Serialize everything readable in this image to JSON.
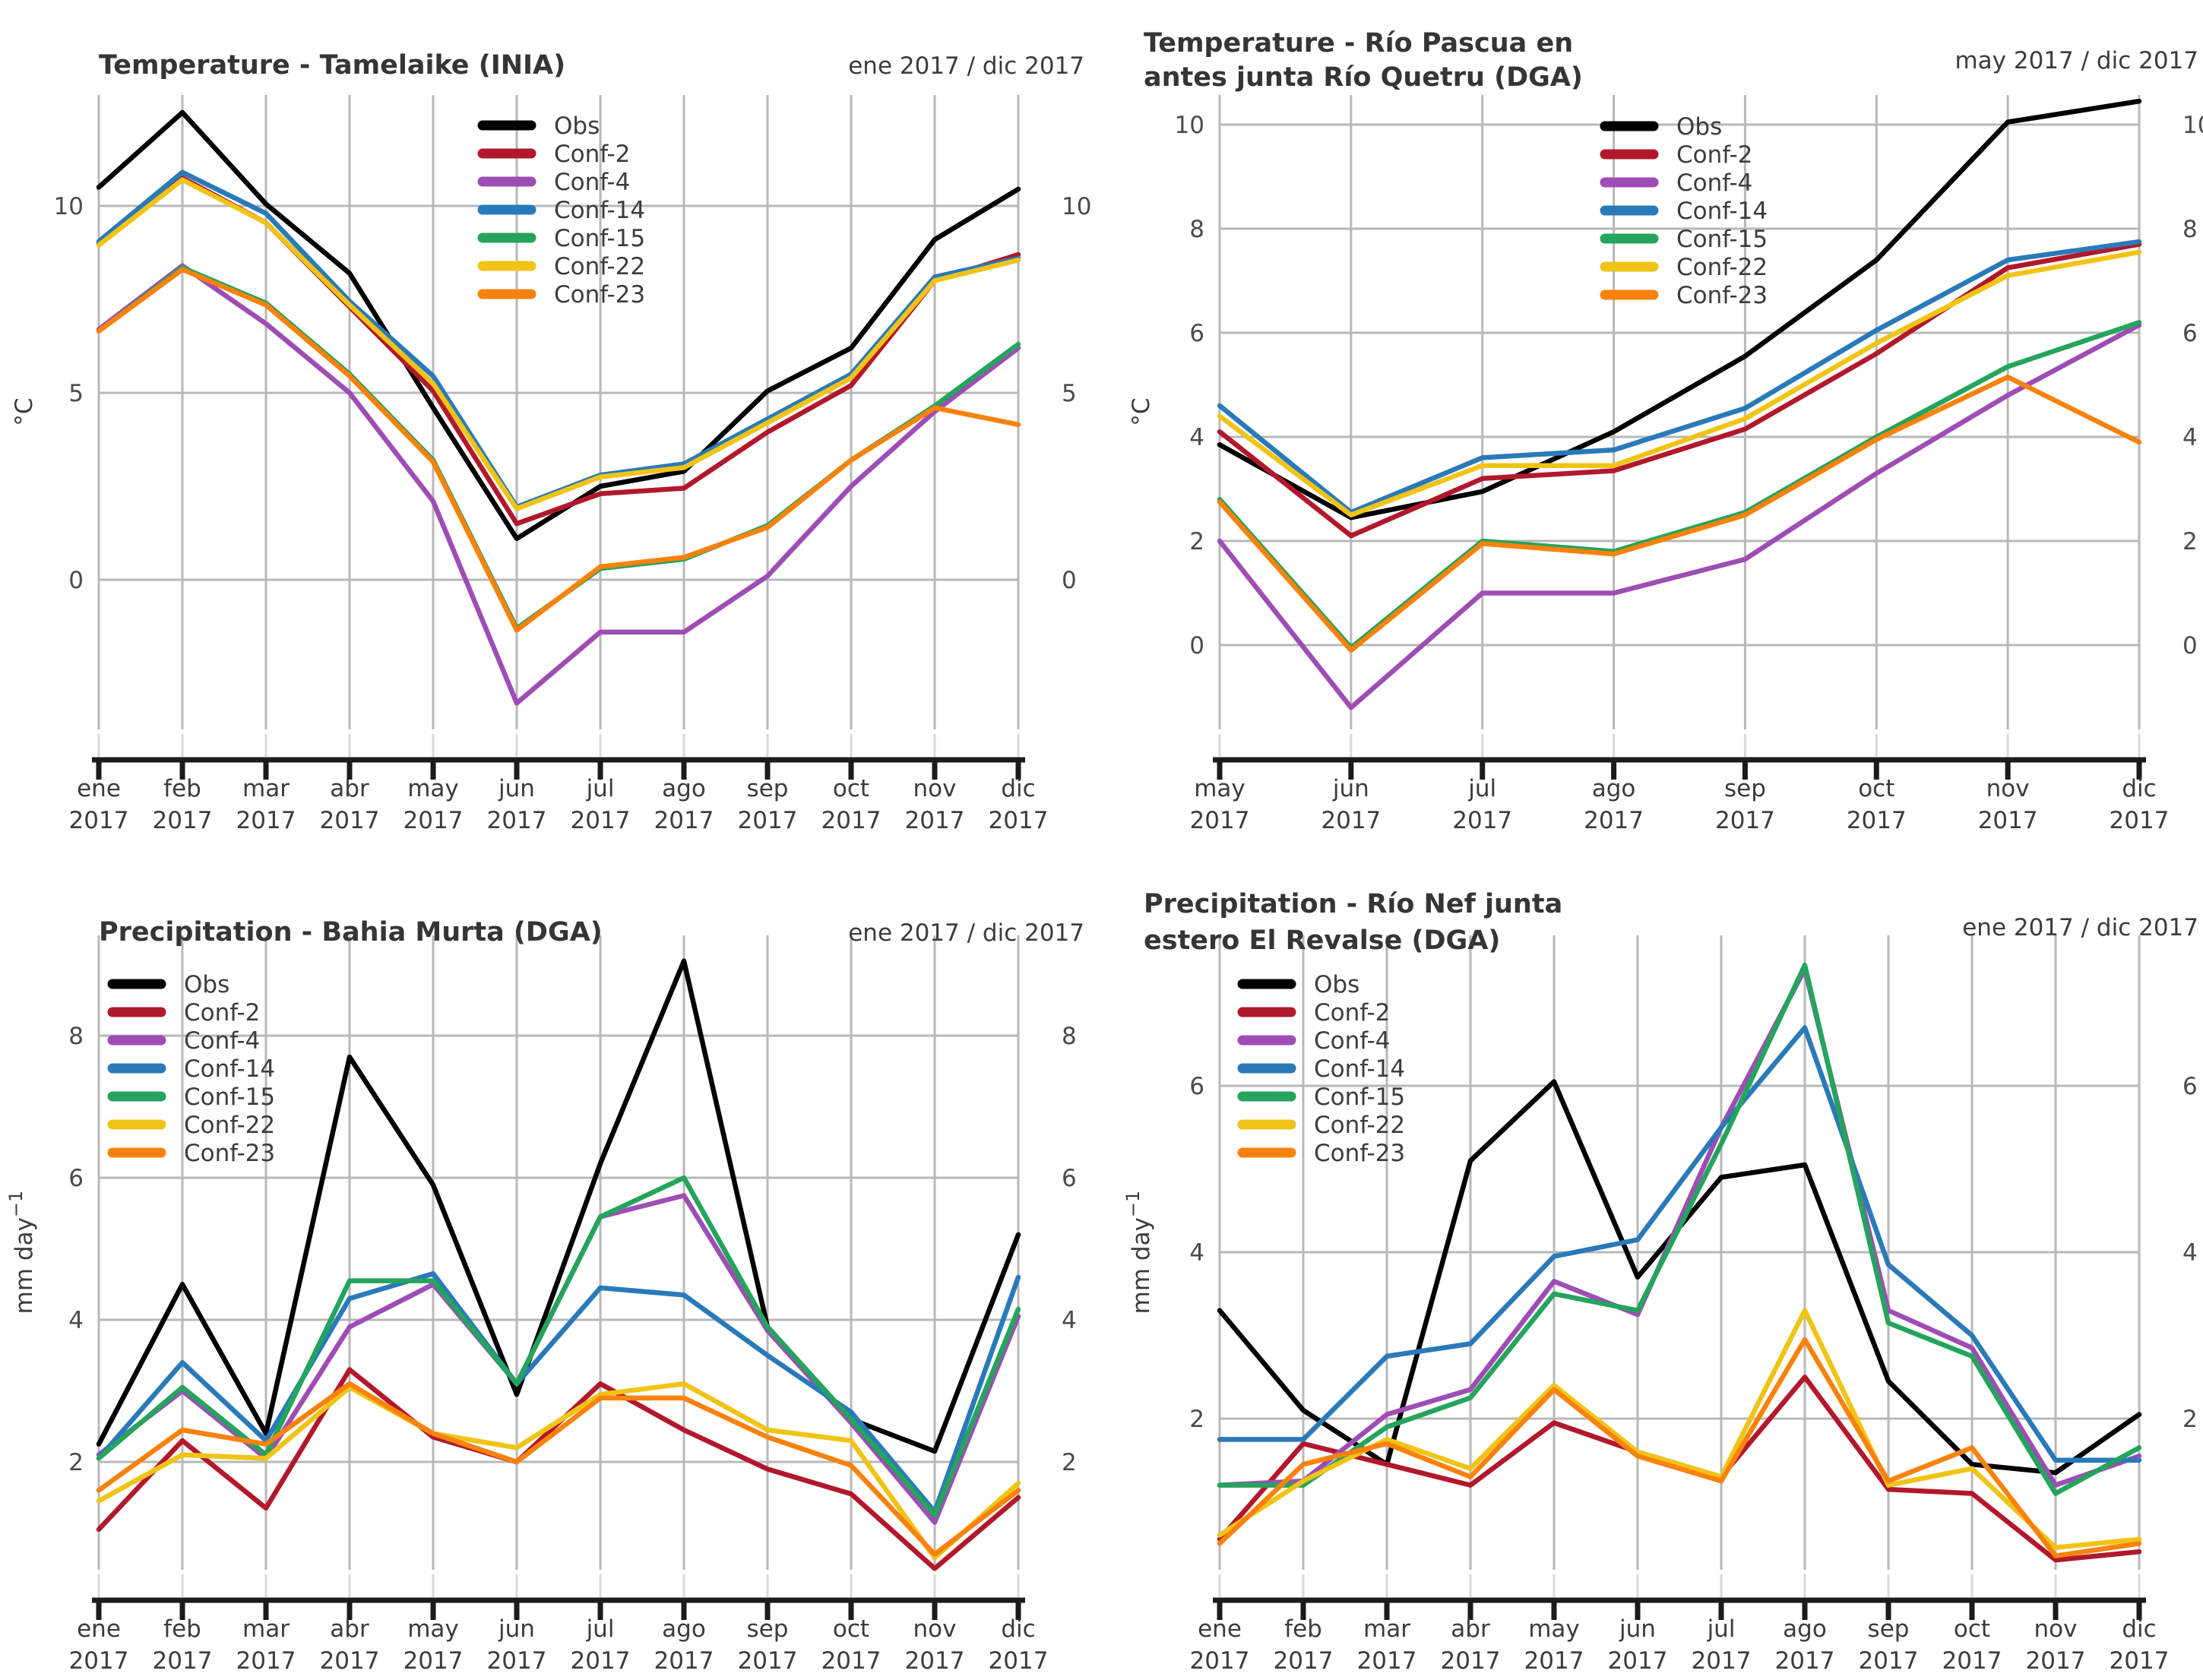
{
  "figure": {
    "background": "#ffffff",
    "grid_color": "#b8b8b8",
    "stub_color": "#d9d9d9",
    "axis_color": "#1b1b1b",
    "title_color": "#353535",
    "tick_label_color": "#4b4b4b"
  },
  "chart_data": [
    {
      "type": "line",
      "title_lines": [
        "Temperature - Tamelaike (INIA)"
      ],
      "range_label": "ene 2017 / dic 2017",
      "ylabel": {
        "main": "°C",
        "sup": ""
      },
      "year": "2017",
      "categories": [
        "ene",
        "feb",
        "mar",
        "abr",
        "may",
        "jun",
        "jul",
        "ago",
        "sep",
        "oct",
        "nov",
        "dic"
      ],
      "yticks": [
        0,
        5,
        10
      ],
      "ylim": [
        -4.0,
        12.95
      ],
      "grid": true,
      "legend_position": "inside-top-center-right",
      "series": [
        {
          "name": "Obs",
          "color": "#000000",
          "values": [
            10.5,
            12.5,
            10.05,
            8.2,
            4.6,
            1.1,
            2.5,
            2.9,
            5.05,
            6.2,
            9.1,
            10.45
          ]
        },
        {
          "name": "Conf-2",
          "color": "#b2182b",
          "values": [
            9.0,
            10.75,
            9.55,
            7.3,
            5.05,
            1.5,
            2.3,
            2.45,
            3.95,
            5.2,
            8.0,
            8.7
          ]
        },
        {
          "name": "Conf-4",
          "color": "#9e4db5",
          "values": [
            6.7,
            8.4,
            6.85,
            5.0,
            2.1,
            -3.3,
            -1.4,
            -1.4,
            0.1,
            2.5,
            4.5,
            6.2
          ]
        },
        {
          "name": "Conf-14",
          "color": "#2a7ab9",
          "values": [
            9.05,
            10.9,
            9.8,
            7.45,
            5.45,
            1.95,
            2.8,
            3.1,
            4.3,
            5.5,
            8.1,
            8.6
          ]
        },
        {
          "name": "Conf-15",
          "color": "#24a45c",
          "values": [
            6.65,
            8.35,
            7.4,
            5.5,
            3.2,
            -1.3,
            0.3,
            0.55,
            1.45,
            3.2,
            4.65,
            6.3
          ]
        },
        {
          "name": "Conf-22",
          "color": "#f0c417",
          "values": [
            8.95,
            10.7,
            9.55,
            7.35,
            5.25,
            1.9,
            2.75,
            3.0,
            4.2,
            5.4,
            8.0,
            8.55
          ]
        },
        {
          "name": "Conf-23",
          "color": "#f9820d",
          "values": [
            6.65,
            8.3,
            7.35,
            5.45,
            3.15,
            -1.35,
            0.35,
            0.6,
            1.4,
            3.2,
            4.6,
            4.15
          ]
        }
      ]
    },
    {
      "type": "line",
      "title_lines": [
        "Temperature - Río Pascua en",
        "antes junta Río Quetru (DGA)"
      ],
      "range_label": "may 2017 / dic 2017",
      "ylabel": {
        "main": "°C",
        "sup": ""
      },
      "year": "2017",
      "categories": [
        "may",
        "jun",
        "jul",
        "ago",
        "sep",
        "oct",
        "nov",
        "dic"
      ],
      "yticks": [
        0,
        2,
        4,
        6,
        8,
        10
      ],
      "ylim": [
        -1.6,
        10.55
      ],
      "grid": true,
      "legend_position": "inside-top-center-right",
      "series": [
        {
          "name": "Obs",
          "color": "#000000",
          "values": [
            3.85,
            2.45,
            2.95,
            4.1,
            5.55,
            7.4,
            10.05,
            10.45
          ]
        },
        {
          "name": "Conf-2",
          "color": "#b2182b",
          "values": [
            4.1,
            2.1,
            3.2,
            3.35,
            4.15,
            5.6,
            7.25,
            7.7
          ]
        },
        {
          "name": "Conf-4",
          "color": "#9e4db5",
          "values": [
            2.0,
            -1.2,
            1.0,
            1.0,
            1.65,
            3.3,
            4.8,
            6.15
          ]
        },
        {
          "name": "Conf-14",
          "color": "#2a7ab9",
          "values": [
            4.6,
            2.55,
            3.6,
            3.75,
            4.55,
            6.05,
            7.4,
            7.75
          ]
        },
        {
          "name": "Conf-15",
          "color": "#24a45c",
          "values": [
            2.8,
            -0.05,
            2.0,
            1.8,
            2.55,
            4.0,
            5.35,
            6.2
          ]
        },
        {
          "name": "Conf-22",
          "color": "#f0c417",
          "values": [
            4.4,
            2.5,
            3.45,
            3.45,
            4.35,
            5.8,
            7.1,
            7.55
          ]
        },
        {
          "name": "Conf-23",
          "color": "#f9820d",
          "values": [
            2.75,
            -0.1,
            1.95,
            1.75,
            2.5,
            3.95,
            5.15,
            3.9
          ]
        }
      ]
    },
    {
      "type": "line",
      "title_lines": [
        "Precipitation - Bahia Murta (DGA)"
      ],
      "range_label": "ene 2017 / dic 2017",
      "ylabel": {
        "main": "mm day",
        "sup": "−1"
      },
      "year": "2017",
      "categories": [
        "ene",
        "feb",
        "mar",
        "abr",
        "may",
        "jun",
        "jul",
        "ago",
        "sep",
        "oct",
        "nov",
        "dic"
      ],
      "yticks": [
        2,
        4,
        6,
        8
      ],
      "ylim": [
        0.45,
        9.4
      ],
      "grid": true,
      "legend_position": "inside-top-left",
      "series": [
        {
          "name": "Obs",
          "color": "#000000",
          "values": [
            2.25,
            4.5,
            2.4,
            7.7,
            5.9,
            2.95,
            6.2,
            9.05,
            3.9,
            2.6,
            2.15,
            5.2
          ]
        },
        {
          "name": "Conf-2",
          "color": "#b2182b",
          "values": [
            1.05,
            2.3,
            1.35,
            3.3,
            2.35,
            2.0,
            3.1,
            2.45,
            1.9,
            1.55,
            0.5,
            1.5
          ]
        },
        {
          "name": "Conf-4",
          "color": "#9e4db5",
          "values": [
            2.1,
            3.0,
            2.05,
            3.9,
            4.5,
            3.1,
            5.45,
            5.75,
            3.85,
            2.55,
            1.15,
            4.05
          ]
        },
        {
          "name": "Conf-14",
          "color": "#2a7ab9",
          "values": [
            2.05,
            3.4,
            2.3,
            4.3,
            4.65,
            3.1,
            4.45,
            4.35,
            3.5,
            2.7,
            1.3,
            4.6
          ]
        },
        {
          "name": "Conf-15",
          "color": "#24a45c",
          "values": [
            2.05,
            3.05,
            2.1,
            4.55,
            4.55,
            3.1,
            5.45,
            6.0,
            3.9,
            2.6,
            1.25,
            4.15
          ]
        },
        {
          "name": "Conf-22",
          "color": "#f0c417",
          "values": [
            1.45,
            2.1,
            2.05,
            3.05,
            2.4,
            2.2,
            2.95,
            3.1,
            2.45,
            2.3,
            0.65,
            1.7
          ]
        },
        {
          "name": "Conf-23",
          "color": "#f9820d",
          "values": [
            1.6,
            2.45,
            2.25,
            3.1,
            2.4,
            2.0,
            2.9,
            2.9,
            2.35,
            1.95,
            0.7,
            1.6
          ]
        }
      ]
    },
    {
      "type": "line",
      "title_lines": [
        "Precipitation - Río Nef junta",
        "estero El Revalse (DGA)"
      ],
      "range_label": "ene 2017 / dic 2017",
      "ylabel": {
        "main": "mm day",
        "sup": "−1"
      },
      "year": "2017",
      "categories": [
        "ene",
        "feb",
        "mar",
        "abr",
        "may",
        "jun",
        "jul",
        "ago",
        "sep",
        "oct",
        "nov",
        "dic"
      ],
      "yticks": [
        2,
        4,
        6
      ],
      "ylim": [
        0.2,
        7.8
      ],
      "grid": true,
      "legend_position": "inside-top-left",
      "series": [
        {
          "name": "Obs",
          "color": "#000000",
          "values": [
            3.3,
            2.1,
            1.45,
            5.1,
            6.05,
            3.7,
            4.9,
            5.05,
            2.45,
            1.45,
            1.35,
            2.05
          ]
        },
        {
          "name": "Conf-2",
          "color": "#b2182b",
          "values": [
            0.55,
            1.7,
            1.45,
            1.2,
            1.95,
            1.6,
            1.3,
            2.5,
            1.15,
            1.1,
            0.3,
            0.4
          ]
        },
        {
          "name": "Conf-4",
          "color": "#9e4db5",
          "values": [
            1.2,
            1.25,
            2.05,
            2.35,
            3.65,
            3.25,
            5.5,
            7.4,
            3.3,
            2.85,
            1.2,
            1.55
          ]
        },
        {
          "name": "Conf-14",
          "color": "#2a7ab9",
          "values": [
            1.75,
            1.75,
            2.75,
            2.9,
            3.95,
            4.15,
            5.5,
            6.7,
            3.85,
            3.0,
            1.5,
            1.5
          ]
        },
        {
          "name": "Conf-15",
          "color": "#24a45c",
          "values": [
            1.2,
            1.2,
            1.9,
            2.25,
            3.5,
            3.3,
            5.3,
            7.45,
            3.15,
            2.75,
            1.1,
            1.65
          ]
        },
        {
          "name": "Conf-22",
          "color": "#f0c417",
          "values": [
            0.6,
            1.25,
            1.75,
            1.4,
            2.4,
            1.6,
            1.3,
            3.3,
            1.2,
            1.4,
            0.45,
            0.55
          ]
        },
        {
          "name": "Conf-23",
          "color": "#f9820d",
          "values": [
            0.5,
            1.45,
            1.7,
            1.3,
            2.35,
            1.55,
            1.25,
            2.95,
            1.25,
            1.65,
            0.35,
            0.5
          ]
        }
      ]
    }
  ]
}
